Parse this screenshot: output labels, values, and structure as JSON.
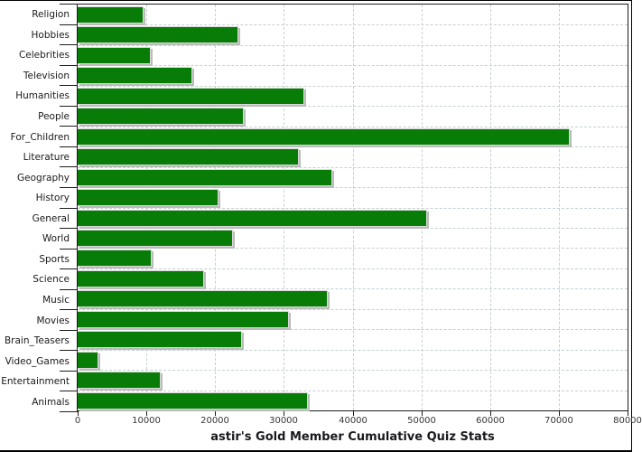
{
  "chart_data": {
    "type": "bar",
    "orientation": "horizontal",
    "title": "astir's Gold Member Cumulative Quiz Stats",
    "categories": [
      "Religion",
      "Hobbies",
      "Celebrities",
      "Television",
      "Humanities",
      "People",
      "For_Children",
      "Literature",
      "Geography",
      "History",
      "General",
      "World",
      "Sports",
      "Science",
      "Music",
      "Movies",
      "Brain_Teasers",
      "Video_Games",
      "Entertainment",
      "Animals"
    ],
    "values": [
      9500,
      23300,
      10500,
      16600,
      32900,
      24100,
      71400,
      32100,
      36900,
      20400,
      50700,
      22500,
      10600,
      18300,
      36300,
      30600,
      23800,
      2900,
      11900,
      33400
    ],
    "xlabel": "",
    "ylabel": "",
    "xlim": [
      0,
      80000
    ],
    "x_ticks": [
      0,
      10000,
      20000,
      30000,
      40000,
      50000,
      60000,
      70000,
      80000
    ],
    "grid": "dashed vertical at every 10000 and horizontal at category boundaries",
    "legend": "none",
    "bar_color": "#077d07"
  },
  "colors": {
    "bar_fill": "#077d07",
    "bar_border": "#d9d9d9",
    "bar_shadow": "#b9bdb9",
    "gridline": "#c7cfd3",
    "frame": "#1c1c1c",
    "category_text": "#1a1a1a",
    "tick_text": "#37373b",
    "title_text": "#19191d",
    "page_border": "#000000",
    "background": "#ffffff"
  }
}
